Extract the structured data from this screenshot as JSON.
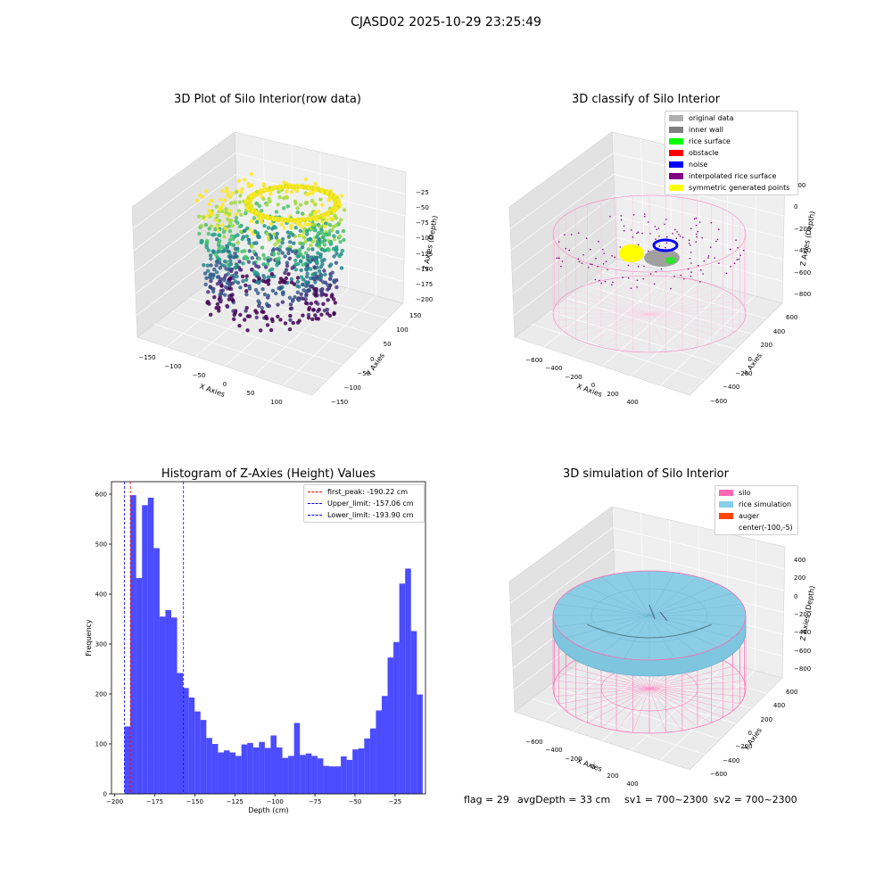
{
  "suptitle": "CJASD02 2025-10-29 23:25:49",
  "plot1": {
    "title": "3D Plot of Silo Interior(row data)",
    "xlabel": "X Axies",
    "ylabel": "Y Axies",
    "zlabel": "Z Axies (Depth)",
    "xticks": [
      "−150",
      "−100",
      "−50",
      "0",
      "50",
      "100"
    ],
    "yticks": [
      "150",
      "100",
      "50",
      "0",
      "−50",
      "−100",
      "−150"
    ],
    "zticks": [
      "−25",
      "−50",
      "−75",
      "−100",
      "−125",
      "−150",
      "−175",
      "−200"
    ]
  },
  "plot2": {
    "title": "3D classify of Silo Interior",
    "xlabel": "X Axies",
    "ylabel": "Y Axies",
    "zlabel": "Z Axies (Depth)",
    "xticks": [
      "−600",
      "−400",
      "−200",
      "0",
      "200",
      "400"
    ],
    "yticks": [
      "600",
      "400",
      "200",
      "0",
      "−200",
      "−400",
      "−600"
    ],
    "zticks": [
      "200",
      "0",
      "−200",
      "−400",
      "−600",
      "−800"
    ],
    "legend": [
      {
        "label": "original data",
        "color": "#b0b0b0"
      },
      {
        "label": "inner wall",
        "color": "#808080"
      },
      {
        "label": "rice surface",
        "color": "#00ff00"
      },
      {
        "label": "obstacle",
        "color": "#ff0000"
      },
      {
        "label": "noise",
        "color": "#0000ff"
      },
      {
        "label": "interpolated rice surface",
        "color": "#800080"
      },
      {
        "label": "symmetric generated points",
        "color": "#ffff00"
      }
    ]
  },
  "plot4": {
    "title": "3D simulation of Silo Interior",
    "xlabel": "X Axies",
    "ylabel": "Y Axies",
    "zlabel": "Z Axies (Depth)",
    "xticks": [
      "−600",
      "−400",
      "−200",
      "0",
      "200",
      "400"
    ],
    "yticks": [
      "600",
      "400",
      "200",
      "0",
      "−200",
      "−400",
      "−600"
    ],
    "zticks": [
      "400",
      "200",
      "0",
      "−200",
      "−400",
      "−600",
      "−800"
    ],
    "legend": [
      {
        "label": "silo",
        "color": "#ff69b4"
      },
      {
        "label": "rice simulation",
        "color": "#87ceeb"
      },
      {
        "label": "auger",
        "color": "#ff4500"
      },
      {
        "label": "center(-100,-5)",
        "color": ""
      }
    ]
  },
  "footer": {
    "flag": "flag = 29",
    "avg_depth": "avgDepth = 33 cm",
    "sv1": "sv1 = 700~2300",
    "sv2": "sv2 = 700~2300"
  },
  "chart_data": {
    "type": "bar",
    "title": "Histogram of Z-Axies (Height) Values",
    "xlabel": "Depth (cm)",
    "ylabel": "Frequency",
    "xlim": [
      -202,
      -6
    ],
    "ylim": [
      0,
      625
    ],
    "xticks": [
      -200,
      -175,
      -150,
      -125,
      -100,
      -75,
      -50,
      -25
    ],
    "yticks": [
      0,
      100,
      200,
      300,
      400,
      500,
      600
    ],
    "bin_start": -193.9,
    "bin_width": 3.65,
    "color": "#0000ff",
    "values": [
      135,
      598,
      432,
      578,
      593,
      492,
      355,
      368,
      353,
      242,
      212,
      193,
      165,
      148,
      112,
      100,
      83,
      87,
      83,
      76,
      99,
      102,
      93,
      104,
      92,
      117,
      93,
      72,
      76,
      142,
      78,
      81,
      76,
      71,
      56,
      55,
      55,
      75,
      68,
      89,
      91,
      111,
      131,
      167,
      196,
      273,
      304,
      421,
      451,
      326,
      199
    ],
    "vlines": [
      {
        "label": "first_peak: -190.22 cm",
        "x": -190.22,
        "color": "#ff0000"
      },
      {
        "label": "Upper_limit: -157.06 cm",
        "x": -157.06,
        "color": "#0000ff"
      },
      {
        "label": "Lower_limit: -193.90 cm",
        "x": -193.9,
        "color": "#0000ff"
      }
    ]
  }
}
